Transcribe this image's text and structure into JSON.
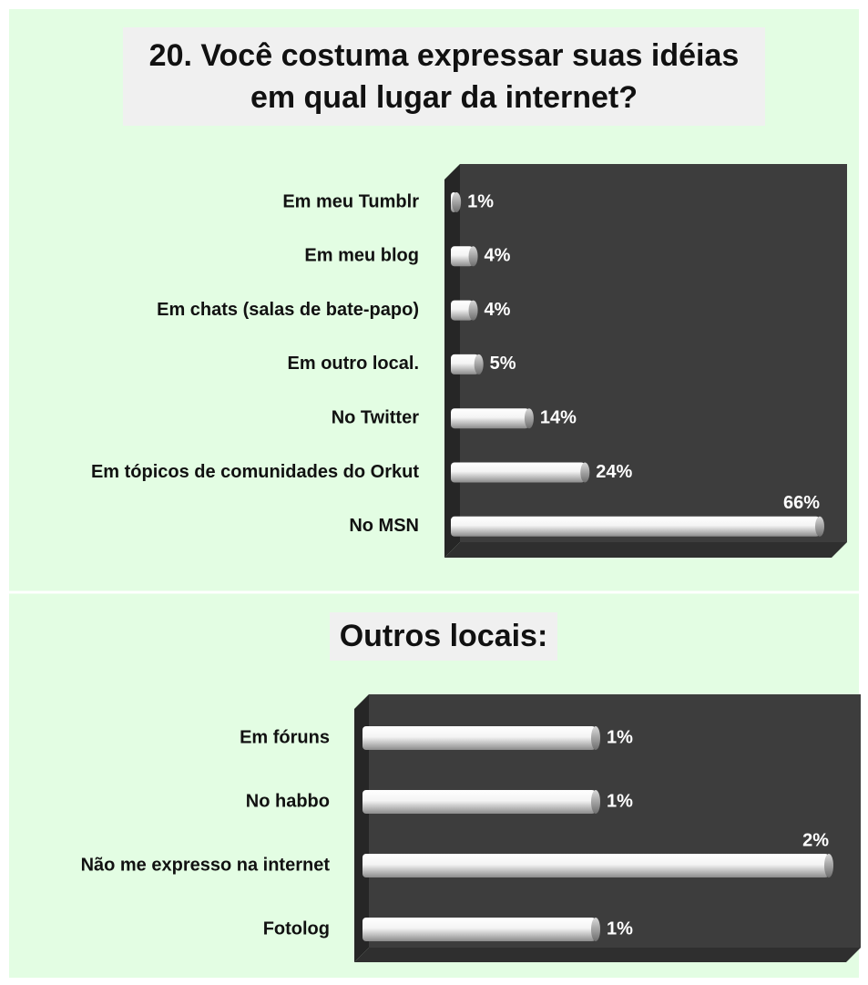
{
  "chart_data": [
    {
      "type": "bar",
      "orientation": "horizontal",
      "title": "20. Você costuma expressar suas idéias em qual lugar da internet?",
      "categories": [
        "Em meu Tumblr",
        "Em meu blog",
        "Em chats (salas de bate-papo)",
        "Em outro local.",
        "No Twitter",
        "Em tópicos de comunidades do Orkut",
        "No MSN"
      ],
      "values": [
        1,
        4,
        4,
        5,
        14,
        24,
        66
      ],
      "value_labels": [
        "1%",
        "4%",
        "4%",
        "5%",
        "14%",
        "24%",
        "66%"
      ],
      "color": "#f4f4f4"
    },
    {
      "type": "bar",
      "orientation": "horizontal",
      "title": "Outros locais:",
      "categories": [
        "Em fóruns",
        "No habbo",
        "Não me expresso na internet",
        "Fotolog"
      ],
      "values": [
        1,
        1,
        2,
        1
      ],
      "value_labels": [
        "1%",
        "1%",
        "2%",
        "1%"
      ],
      "color": "#f4f4f4"
    }
  ]
}
